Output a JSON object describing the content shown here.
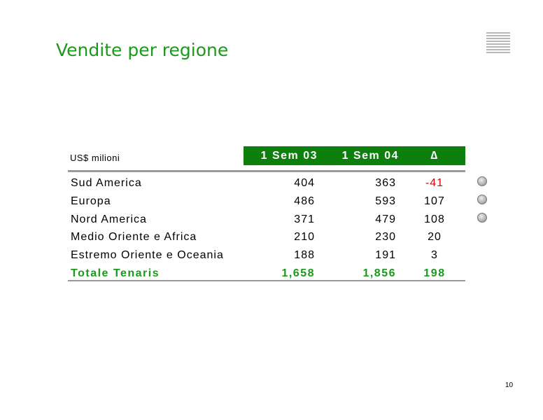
{
  "title": "Vendite per regione",
  "table": {
    "unit": "US$ milioni",
    "headers": [
      "1 Sem 03",
      "1 Sem 04",
      "∆"
    ],
    "rows": [
      [
        "Sud America",
        "404",
        "363",
        "-41"
      ],
      [
        "Europa",
        "486",
        "593",
        "107"
      ],
      [
        "Nord America",
        "371",
        "479",
        "108"
      ],
      [
        "Medio Oriente e Africa",
        "210",
        "230",
        "20"
      ],
      [
        "Estremo Oriente e Oceania",
        "188",
        "191",
        "3"
      ]
    ],
    "total": [
      "Totale Tenaris",
      "1,658",
      "1,856",
      "198"
    ]
  },
  "page_number": "10"
}
